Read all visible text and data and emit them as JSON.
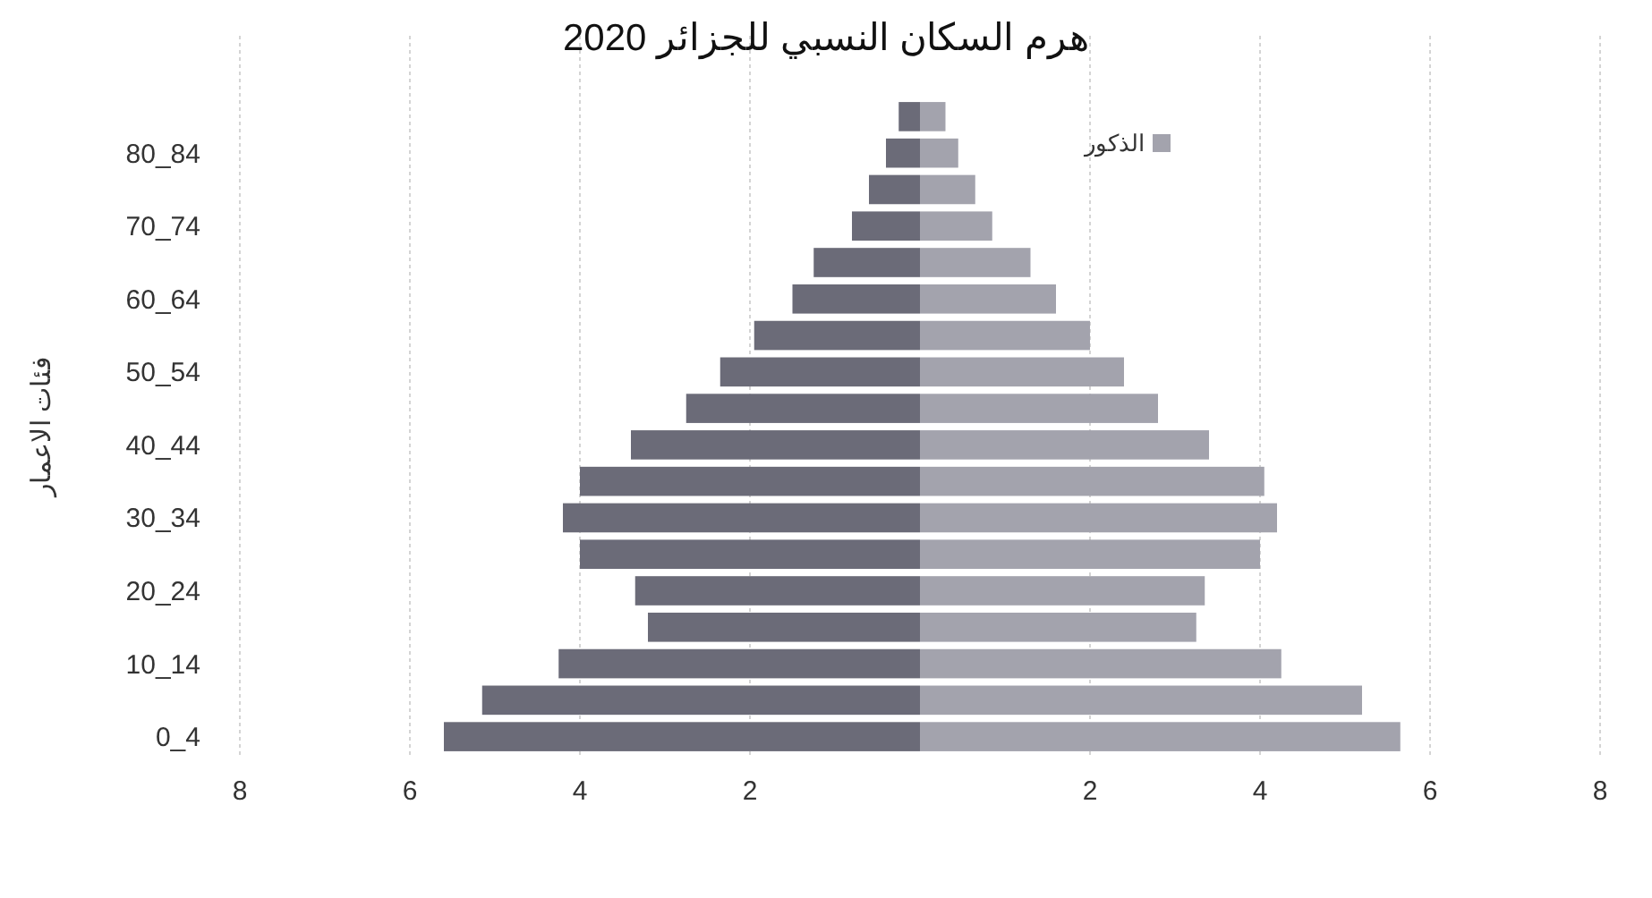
{
  "chart_data": {
    "type": "bar",
    "title": "هرم السكان النسبي للجزائر 2020",
    "ylabel": "فئات الاعمار",
    "orientation": "horizontal",
    "stacked": true,
    "categories": [
      null,
      "80_84",
      null,
      "70_74",
      null,
      "60_64",
      null,
      "50_54",
      null,
      "40_44",
      null,
      "30_34",
      null,
      "20_24",
      null,
      "10_14",
      null,
      "0_4"
    ],
    "series": [
      {
        "color": "#6b6b78",
        "values": [
          -0.25,
          -0.4,
          -0.6,
          -0.8,
          -1.25,
          -1.5,
          -1.95,
          -2.35,
          -2.75,
          -3.4,
          -4.0,
          -4.2,
          -4.0,
          -3.35,
          -3.2,
          -4.25,
          -5.15,
          -5.6
        ]
      },
      {
        "name": "الذكور",
        "color": "#a3a3ad",
        "values": [
          0.3,
          0.45,
          0.65,
          0.85,
          1.3,
          1.6,
          2.0,
          2.4,
          2.8,
          3.4,
          4.05,
          4.2,
          4.0,
          3.35,
          3.25,
          4.25,
          5.2,
          5.65
        ]
      }
    ],
    "xlim": [
      -8,
      8
    ],
    "xticks": [
      {
        "value": -8,
        "label": "8"
      },
      {
        "value": -6,
        "label": "6"
      },
      {
        "value": -4,
        "label": "4"
      },
      {
        "value": -2,
        "label": "2"
      },
      {
        "value": 2,
        "label": "2"
      },
      {
        "value": 4,
        "label": "4"
      },
      {
        "value": 6,
        "label": "6"
      },
      {
        "value": 8,
        "label": "8"
      }
    ],
    "grid": "x",
    "legend": "top right"
  }
}
